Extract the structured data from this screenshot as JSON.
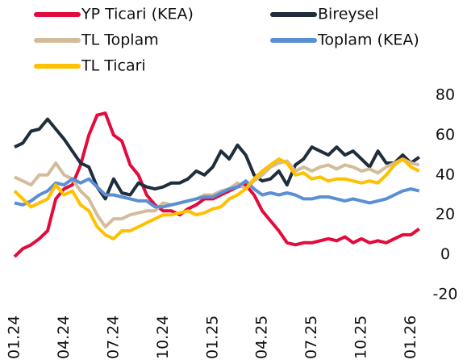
{
  "chart_data": {
    "type": "line",
    "x": [
      0,
      0.5,
      1,
      1.5,
      2,
      2.5,
      3,
      3.5,
      4,
      4.5,
      5,
      5.5,
      6,
      6.5,
      7,
      7.5,
      8,
      8.5,
      9,
      9.5,
      10,
      10.5,
      11,
      11.5,
      12,
      12.5,
      13,
      13.5,
      14,
      14.5,
      15,
      15.5,
      16,
      16.5,
      17,
      17.5,
      18,
      18.5,
      19,
      19.5,
      20,
      20.5,
      21,
      21.5,
      22,
      22.5,
      23,
      23.5,
      24,
      24.5
    ],
    "xlim": [
      0,
      25
    ],
    "xticks": [
      {
        "value": 0,
        "label": "01.24"
      },
      {
        "value": 3,
        "label": "04.24"
      },
      {
        "value": 6,
        "label": "07.24"
      },
      {
        "value": 9,
        "label": "10.24"
      },
      {
        "value": 12,
        "label": "01.25"
      },
      {
        "value": 15,
        "label": "04.25"
      },
      {
        "value": 18,
        "label": "07.25"
      },
      {
        "value": 21,
        "label": "10.25"
      },
      {
        "value": 24,
        "label": "01.26"
      }
    ],
    "ylim": [
      -20,
      80
    ],
    "yticks": [
      -20,
      0,
      20,
      40,
      60,
      80
    ],
    "series": [
      {
        "name": "YP Ticari (KEA)",
        "color": "#e30b3c",
        "values": [
          -1,
          3,
          5,
          8,
          12,
          28,
          33,
          35,
          45,
          60,
          70,
          71,
          60,
          57,
          45,
          40,
          30,
          25,
          22,
          22,
          20,
          23,
          25,
          28,
          28,
          30,
          32,
          34,
          35,
          30,
          22,
          17,
          12,
          6,
          5,
          6,
          6,
          7,
          8,
          7,
          9,
          6,
          8,
          6,
          7,
          6,
          8,
          10,
          10,
          13
        ]
      },
      {
        "name": "Bireysel",
        "color": "#1f2d3d",
        "values": [
          54,
          56,
          62,
          63,
          68,
          63,
          58,
          52,
          46,
          44,
          34,
          28,
          38,
          31,
          30,
          36,
          34,
          33,
          34,
          36,
          36,
          38,
          42,
          40,
          44,
          52,
          48,
          55,
          50,
          40,
          37,
          38,
          42,
          35,
          45,
          48,
          54,
          52,
          50,
          54,
          50,
          52,
          48,
          44,
          52,
          46,
          46,
          50,
          46,
          49
        ]
      },
      {
        "name": "TL Toplam",
        "color": "#d4bc9a",
        "values": [
          39,
          37,
          35,
          40,
          40,
          46,
          40,
          38,
          32,
          28,
          20,
          14,
          18,
          18,
          20,
          21,
          22,
          22,
          26,
          25,
          26,
          27,
          28,
          30,
          30,
          32,
          33,
          36,
          33,
          37,
          40,
          44,
          46,
          47,
          42,
          44,
          42,
          44,
          45,
          43,
          45,
          44,
          42,
          43,
          41,
          44,
          46,
          48,
          46,
          45
        ]
      },
      {
        "name": "Toplam (KEA)",
        "color": "#5b8fd4",
        "values": [
          26,
          25,
          27,
          30,
          32,
          36,
          35,
          38,
          36,
          38,
          34,
          30,
          30,
          29,
          28,
          27,
          27,
          24,
          24,
          25,
          26,
          27,
          28,
          29,
          29,
          31,
          33,
          34,
          37,
          33,
          30,
          31,
          30,
          31,
          30,
          28,
          28,
          29,
          29,
          28,
          27,
          28,
          27,
          26,
          27,
          28,
          30,
          32,
          33,
          32
        ]
      },
      {
        "name": "TL Ticari",
        "color": "#ffc000",
        "values": [
          32,
          28,
          24,
          26,
          28,
          35,
          30,
          32,
          25,
          22,
          14,
          10,
          8,
          12,
          12,
          14,
          16,
          18,
          20,
          20,
          21,
          22,
          20,
          21,
          23,
          24,
          28,
          30,
          33,
          38,
          42,
          45,
          48,
          46,
          40,
          41,
          38,
          39,
          37,
          38,
          38,
          37,
          36,
          37,
          36,
          40,
          45,
          48,
          44,
          42
        ]
      }
    ]
  }
}
